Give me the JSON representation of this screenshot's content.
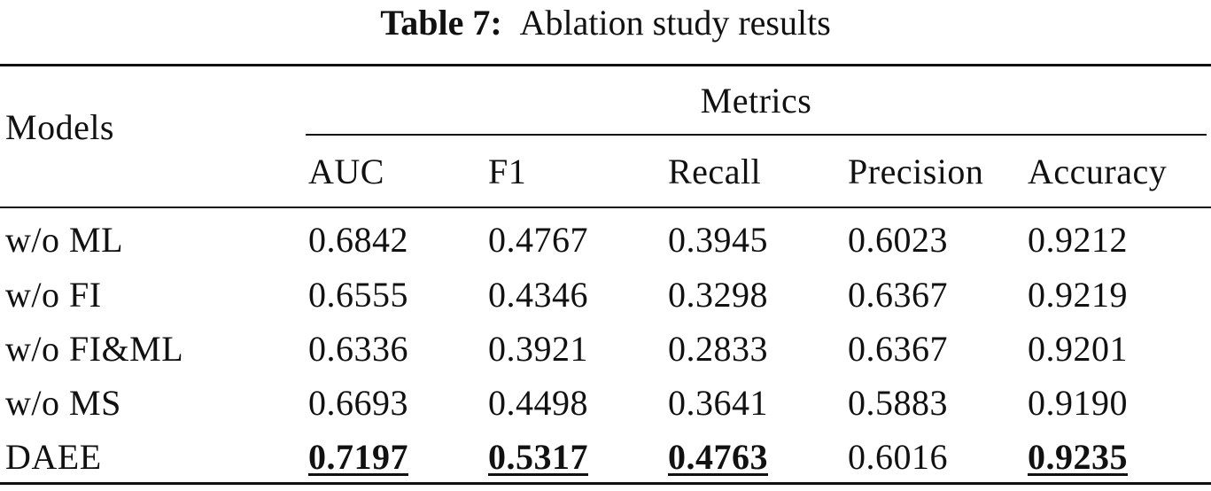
{
  "caption": {
    "label": "Table 7:",
    "text": "Ablation study results"
  },
  "header": {
    "models": "Models",
    "metrics_group": "Metrics",
    "columns": [
      "AUC",
      "F1",
      "Recall",
      "Precision",
      "Accuracy"
    ]
  },
  "rows": [
    {
      "model": "w/o ML",
      "values": [
        "0.6842",
        "0.4767",
        "0.3945",
        "0.6023",
        "0.9212"
      ],
      "best": [
        false,
        false,
        false,
        false,
        false
      ]
    },
    {
      "model": "w/o FI",
      "values": [
        "0.6555",
        "0.4346",
        "0.3298",
        "0.6367",
        "0.9219"
      ],
      "best": [
        false,
        false,
        false,
        false,
        false
      ]
    },
    {
      "model": "w/o FI&ML",
      "values": [
        "0.6336",
        "0.3921",
        "0.2833",
        "0.6367",
        "0.9201"
      ],
      "best": [
        false,
        false,
        false,
        false,
        false
      ]
    },
    {
      "model": "w/o MS",
      "values": [
        "0.6693",
        "0.4498",
        "0.3641",
        "0.5883",
        "0.9190"
      ],
      "best": [
        false,
        false,
        false,
        false,
        false
      ]
    },
    {
      "model": "DAEE",
      "values": [
        "0.7197",
        "0.5317",
        "0.4763",
        "0.6016",
        "0.9235"
      ],
      "best": [
        true,
        true,
        true,
        false,
        true
      ]
    }
  ]
}
